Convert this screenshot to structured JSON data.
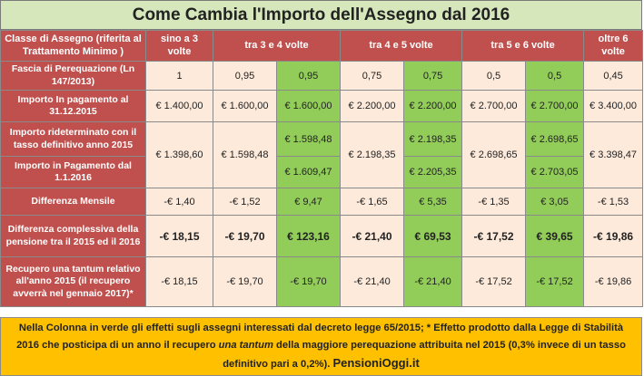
{
  "title": "Come Cambia l'Importo dell'Assegno dal 2016",
  "header": {
    "label": "Classe di Assegno (riferita al Trattamento Minimo )",
    "cols": [
      "sino a 3 volte",
      "tra 3 e 4 volte",
      "tra 4 e 5 volte",
      "tra 5 e 6 volte",
      "oltre 6 volte"
    ]
  },
  "rows": {
    "fascia": {
      "label": "Fascia di Perequazione (Ln 147/2013)",
      "values": [
        "1",
        "0,95",
        "0,95",
        "0,75",
        "0,75",
        "0,5",
        "0,5",
        "0,45"
      ]
    },
    "importo_2015": {
      "label": "Importo In pagamento al 31.12.2015",
      "values": [
        "€ 1.400,00",
        "€ 1.600,00",
        "€ 1.600,00",
        "€ 2.200,00",
        "€ 2.200,00",
        "€ 2.700,00",
        "€ 2.700,00",
        "€ 3.400,00"
      ]
    },
    "rideterminato": {
      "label": "Importo rideterminato con il tasso definitivo anno 2015",
      "values": [
        "€ 1.598,48",
        "€ 2.198,35",
        "€ 2.698,65"
      ]
    },
    "importo_2016": {
      "label": "Importo in Pagamento dal 1.1.2016",
      "values": [
        "€ 1.609,47",
        "€ 2.205,35",
        "€ 2.703,05"
      ]
    },
    "merged": [
      "€ 1.398,60",
      "€ 1.598,48",
      "€ 2.198,35",
      "€ 2.698,65",
      "€ 3.398,47"
    ],
    "diff_mensile": {
      "label": "Differenza Mensile",
      "values": [
        "-€ 1,40",
        "-€ 1,52",
        "€ 9,47",
        "-€ 1,65",
        "€ 5,35",
        "-€ 1,35",
        "€ 3,05",
        "-€ 1,53"
      ]
    },
    "diff_complessiva": {
      "label": "Differenza complessiva della pensione tra il 2015 ed il 2016",
      "values": [
        "-€ 18,15",
        "-€ 19,70",
        "€ 123,16",
        "-€ 21,40",
        "€ 69,53",
        "-€ 17,52",
        "€ 39,65",
        "-€ 19,86"
      ]
    },
    "recupero": {
      "label": "Recupero una tantum relativo all'anno 2015 (il recupero avverrà nel gennaio 2017)*",
      "values": [
        "-€ 18,15",
        "-€ 19,70",
        "-€ 19,70",
        "-€ 21,40",
        "-€ 21,40",
        "-€ 17,52",
        "-€ 17,52",
        "-€ 19,86"
      ]
    }
  },
  "footer": {
    "text_a": "Nella Colonna in verde gli effetti sugli assegni interessati dal decreto legge 65/2015; * Effetto prodotto dalla Legge di Stabilità 2016 che posticipa di un anno il recupero ",
    "text_italic": "una tantum",
    "text_b": " della maggiore perequazione attribuita nel 2015 (0,3% invece di un tasso definitivo pari a 0,2%). ",
    "brand": "PensioniOggi.it"
  },
  "colors": {
    "header_red": "#c0504d",
    "cell_peach": "#fdeadb",
    "cell_green": "#92cd59",
    "title_bg": "#d6e8bb",
    "footer_bg": "#ffc000"
  }
}
